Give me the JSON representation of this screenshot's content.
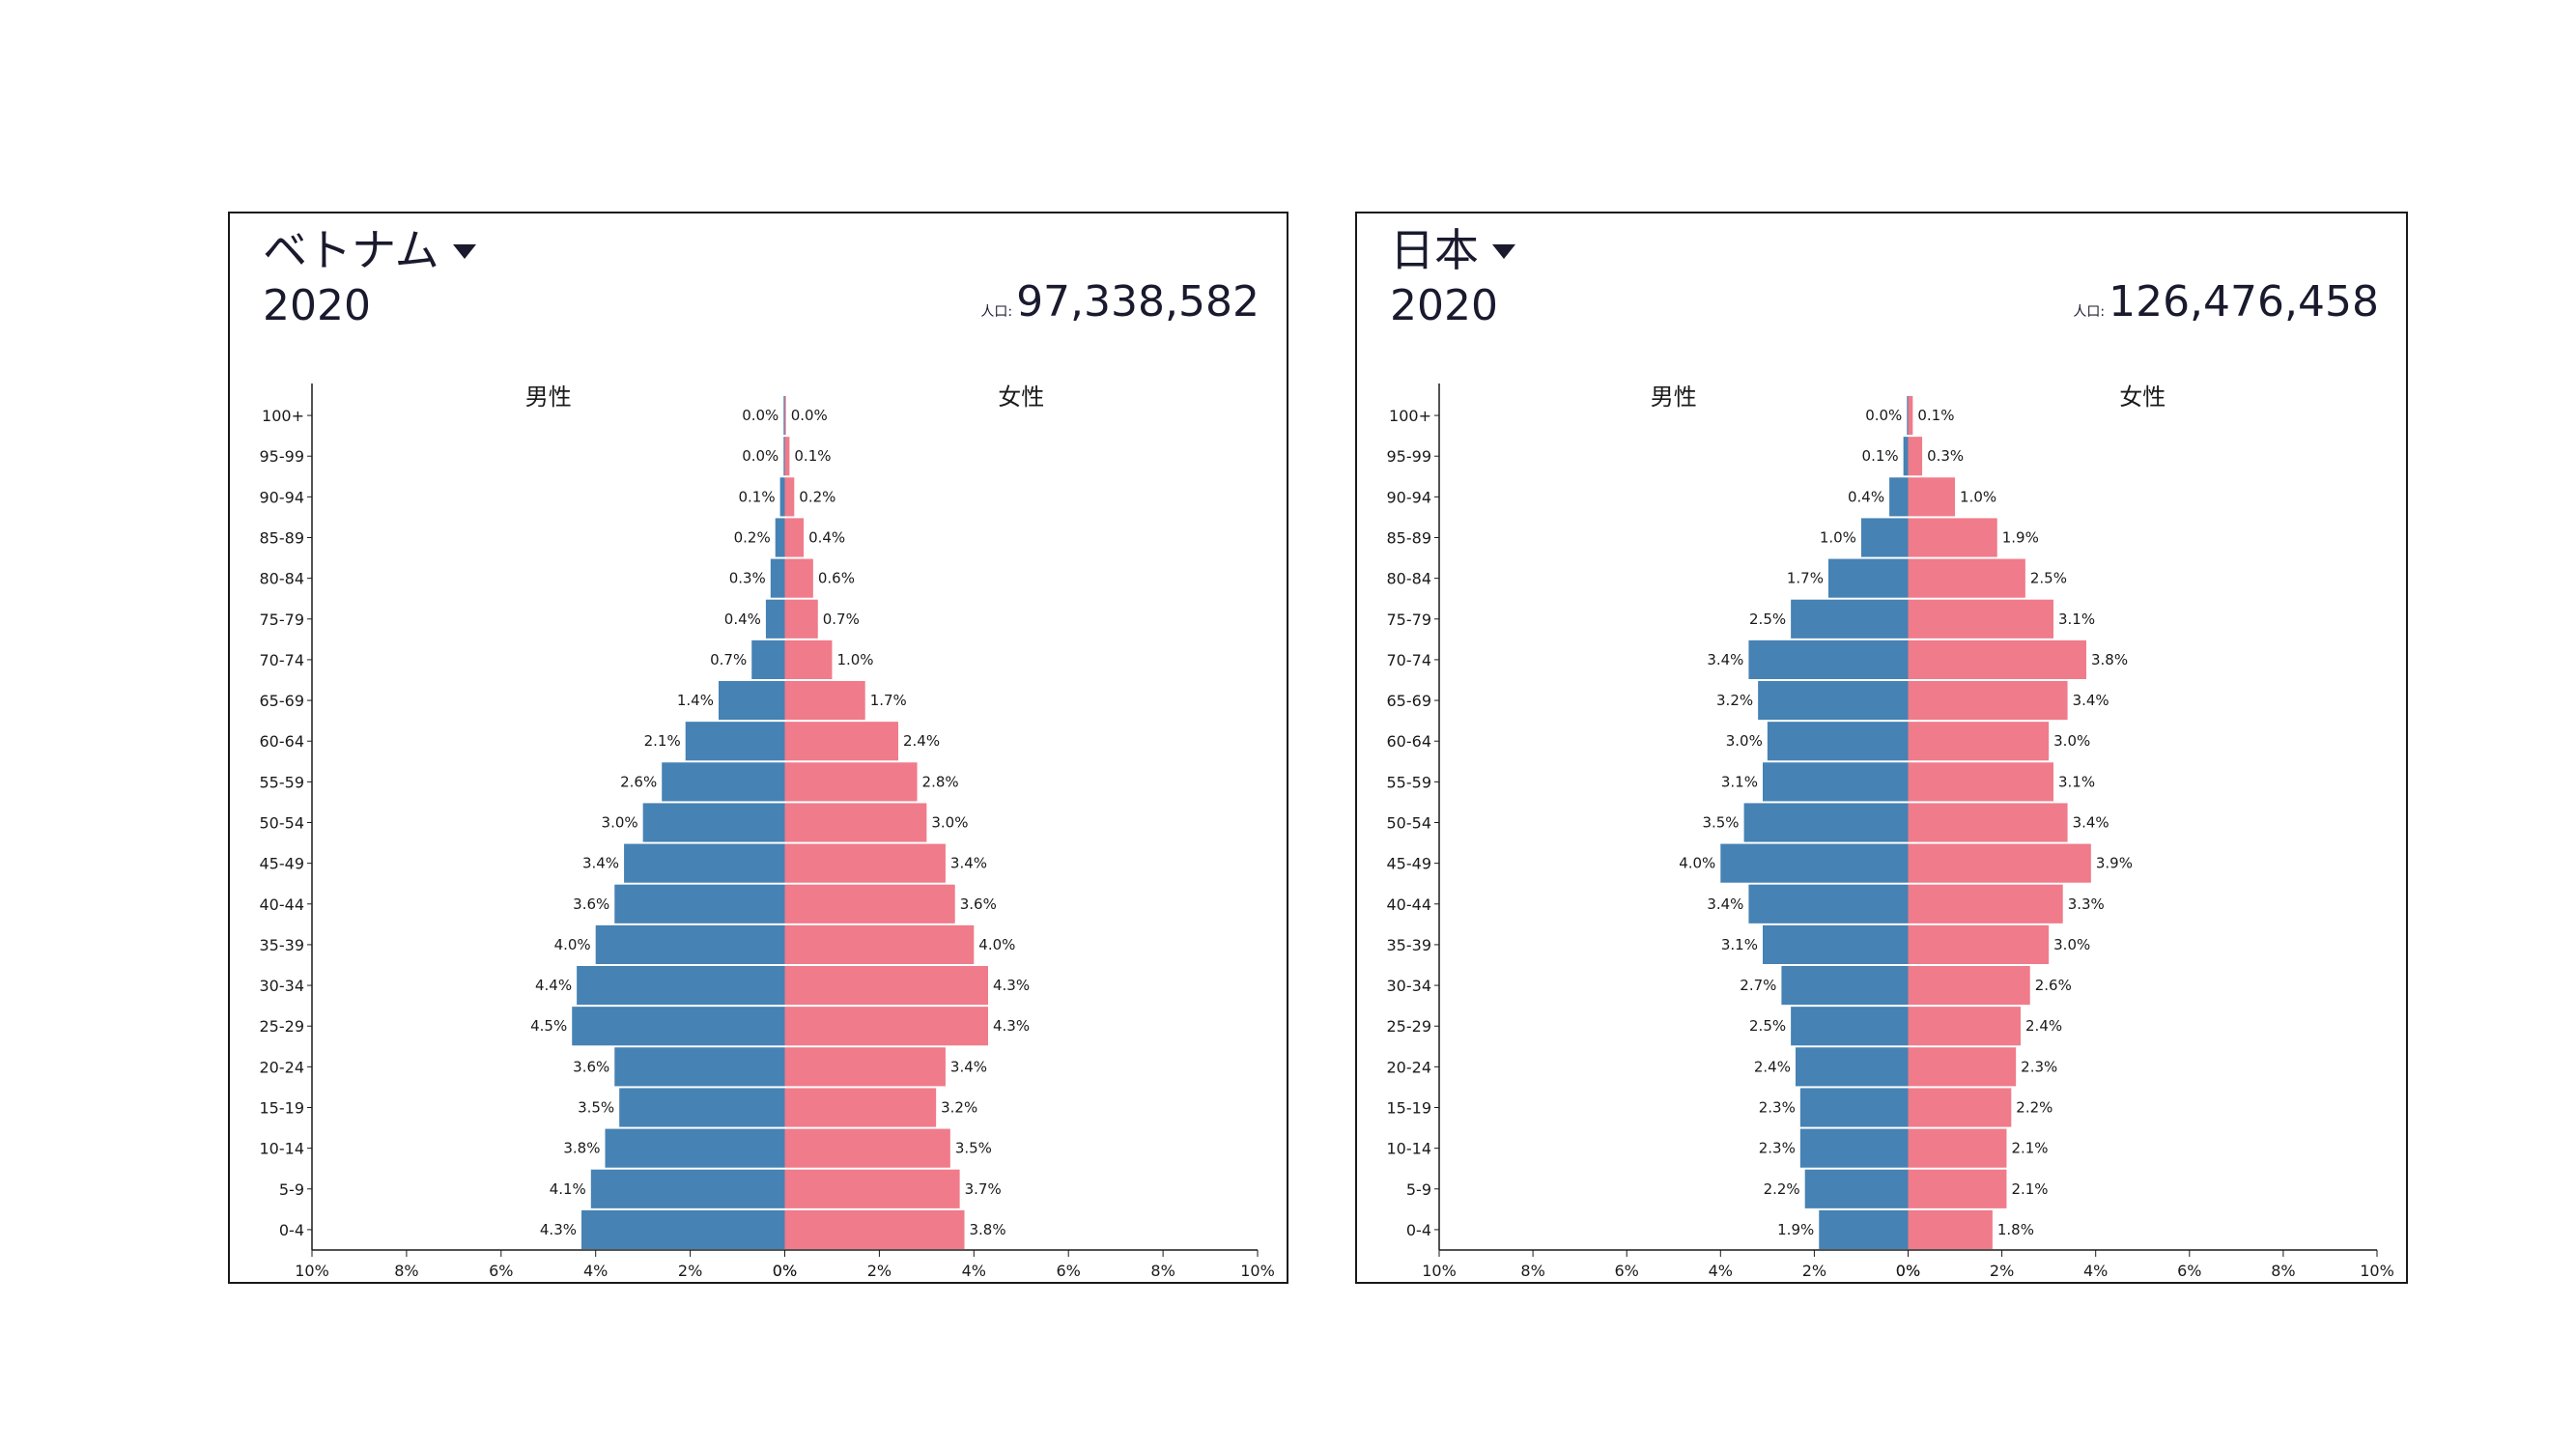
{
  "colors": {
    "male": "#4682b4",
    "female": "#f07b8a",
    "axis": "#1a1a1a"
  },
  "chart_data": [
    {
      "type": "bar",
      "title": "ベトナム",
      "year": "2020",
      "population_label": "人口:",
      "population": "97,338,582",
      "male_label": "男性",
      "female_label": "女性",
      "categories": [
        "0-4",
        "5-9",
        "10-14",
        "15-19",
        "20-24",
        "25-29",
        "30-34",
        "35-39",
        "40-44",
        "45-49",
        "50-54",
        "55-59",
        "60-64",
        "65-69",
        "70-74",
        "75-79",
        "80-84",
        "85-89",
        "90-94",
        "95-99",
        "100+"
      ],
      "series": [
        {
          "name": "男性",
          "values": [
            4.3,
            4.1,
            3.8,
            3.5,
            3.6,
            4.5,
            4.4,
            4.0,
            3.6,
            3.4,
            3.0,
            2.6,
            2.1,
            1.4,
            0.7,
            0.4,
            0.3,
            0.2,
            0.1,
            0.0,
            0.0
          ],
          "labels": [
            "4.3%",
            "4.1%",
            "3.8%",
            "3.5%",
            "3.6%",
            "4.5%",
            "4.4%",
            "4.0%",
            "3.6%",
            "3.4%",
            "3.0%",
            "2.6%",
            "2.1%",
            "1.4%",
            "0.7%",
            "0.4%",
            "0.3%",
            "0.2%",
            "0.1%",
            "0.0%",
            "0.0%"
          ]
        },
        {
          "name": "女性",
          "values": [
            3.8,
            3.7,
            3.5,
            3.2,
            3.4,
            4.3,
            4.3,
            4.0,
            3.6,
            3.4,
            3.0,
            2.8,
            2.4,
            1.7,
            1.0,
            0.7,
            0.6,
            0.4,
            0.2,
            0.1,
            0.0
          ],
          "labels": [
            "3.8%",
            "3.7%",
            "3.5%",
            "3.2%",
            "3.4%",
            "4.3%",
            "4.3%",
            "4.0%",
            "3.6%",
            "3.4%",
            "3.0%",
            "2.8%",
            "2.4%",
            "1.7%",
            "1.0%",
            "0.7%",
            "0.6%",
            "0.4%",
            "0.2%",
            "0.1%",
            "0.0%"
          ]
        }
      ],
      "x_ticks": [
        "10%",
        "8%",
        "6%",
        "4%",
        "2%",
        "0%",
        "0%",
        "2%",
        "4%",
        "6%",
        "8%",
        "10%"
      ],
      "xlim": [
        -10,
        10
      ]
    },
    {
      "type": "bar",
      "title": "日本",
      "year": "2020",
      "population_label": "人口:",
      "population": "126,476,458",
      "male_label": "男性",
      "female_label": "女性",
      "categories": [
        "0-4",
        "5-9",
        "10-14",
        "15-19",
        "20-24",
        "25-29",
        "30-34",
        "35-39",
        "40-44",
        "45-49",
        "50-54",
        "55-59",
        "60-64",
        "65-69",
        "70-74",
        "75-79",
        "80-84",
        "85-89",
        "90-94",
        "95-99",
        "100+"
      ],
      "series": [
        {
          "name": "男性",
          "values": [
            1.9,
            2.2,
            2.3,
            2.3,
            2.4,
            2.5,
            2.7,
            3.1,
            3.4,
            4.0,
            3.5,
            3.1,
            3.0,
            3.2,
            3.4,
            2.5,
            1.7,
            1.0,
            0.4,
            0.1,
            0.0
          ],
          "labels": [
            "1.9%",
            "2.2%",
            "2.3%",
            "2.3%",
            "2.4%",
            "2.5%",
            "2.7%",
            "3.1%",
            "3.4%",
            "4.0%",
            "3.5%",
            "3.1%",
            "3.0%",
            "3.2%",
            "3.4%",
            "2.5%",
            "1.7%",
            "1.0%",
            "0.4%",
            "0.1%",
            "0.0%"
          ]
        },
        {
          "name": "女性",
          "values": [
            1.8,
            2.1,
            2.1,
            2.2,
            2.3,
            2.4,
            2.6,
            3.0,
            3.3,
            3.9,
            3.4,
            3.1,
            3.0,
            3.4,
            3.8,
            3.1,
            2.5,
            1.9,
            1.0,
            0.3,
            0.1
          ],
          "labels": [
            "1.8%",
            "2.1%",
            "2.1%",
            "2.2%",
            "2.3%",
            "2.4%",
            "2.6%",
            "3.0%",
            "3.3%",
            "3.9%",
            "3.4%",
            "3.1%",
            "3.0%",
            "3.4%",
            "3.8%",
            "3.1%",
            "2.5%",
            "1.9%",
            "1.0%",
            "0.3%",
            "0.1%"
          ]
        }
      ],
      "x_ticks": [
        "10%",
        "8%",
        "6%",
        "4%",
        "2%",
        "0%",
        "0%",
        "2%",
        "4%",
        "6%",
        "8%",
        "10%"
      ],
      "xlim": [
        -10,
        10
      ]
    }
  ]
}
